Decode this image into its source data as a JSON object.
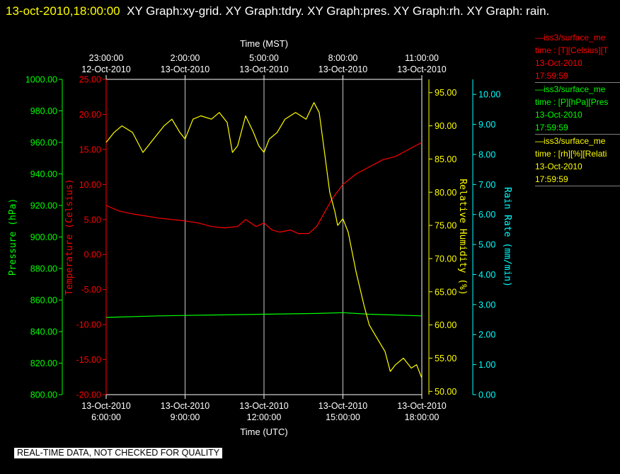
{
  "header": {
    "timestamp": "13-oct-2010,18:00:00",
    "rest": "XY Graph:xy-grid.  XY Graph:tdry.  XY Graph:pres.  XY Graph:rh.  XY Graph: rain."
  },
  "colors": {
    "background": "#000000",
    "temperature": "#ff0000",
    "pressure": "#00ff00",
    "humidity": "#ffff00",
    "rain": "#00ffff",
    "grid": "#ffffff"
  },
  "legend": [
    {
      "lines": [
        "—iss3/surface_me",
        "time : [T][Celsius][T",
        "13-Oct-2010",
        "17:59:59"
      ],
      "color": "#ff0000"
    },
    {
      "lines": [
        "—iss3/surface_me",
        "time : [P][hPa][Pres",
        "13-Oct-2010",
        "17:59:59"
      ],
      "color": "#00ff00"
    },
    {
      "lines": [
        "—iss3/surface_me",
        "time : [rh][%][Relati",
        "13-Oct-2010",
        "17:59:59"
      ],
      "color": "#ffff00"
    }
  ],
  "disclaimer": "REAL-TIME DATA, NOT CHECKED FOR QUALITY",
  "chart_data": {
    "type": "line",
    "x_bottom": {
      "label": "Time (UTC)",
      "range": [
        "13-Oct-2010 06:00:00",
        "13-Oct-2010 18:00:00"
      ],
      "ticks": [
        {
          "date": "13-Oct-2010",
          "time": "6:00:00",
          "hour": 6
        },
        {
          "date": "13-Oct-2010",
          "time": "9:00:00",
          "hour": 9
        },
        {
          "date": "13-Oct-2010",
          "time": "12:00:00",
          "hour": 12
        },
        {
          "date": "13-Oct-2010",
          "time": "15:00:00",
          "hour": 15
        },
        {
          "date": "13-Oct-2010",
          "time": "18:00:00",
          "hour": 18
        }
      ]
    },
    "x_top": {
      "label": "Time (MST)",
      "ticks": [
        {
          "time": "23:00:00",
          "date": "12-Oct-2010",
          "hour": 6
        },
        {
          "time": "2:00:00",
          "date": "13-Oct-2010",
          "hour": 9
        },
        {
          "time": "5:00:00",
          "date": "13-Oct-2010",
          "hour": 12
        },
        {
          "time": "8:00:00",
          "date": "13-Oct-2010",
          "hour": 15
        },
        {
          "time": "11:00:00",
          "date": "13-Oct-2010",
          "hour": 18
        }
      ]
    },
    "grid": true,
    "axes": [
      {
        "id": "pres",
        "label": "Pressure (hPa)",
        "side": "left",
        "range": [
          800,
          1000
        ],
        "ticks": [
          "800.00",
          "820.00",
          "840.00",
          "860.00",
          "880.00",
          "900.00",
          "920.00",
          "940.00",
          "960.00",
          "980.00",
          "1000.00"
        ]
      },
      {
        "id": "tdry",
        "label": "Temperature (Celsius)",
        "side": "left",
        "range": [
          -20,
          25
        ],
        "ticks": [
          "-20.00",
          "-15.00",
          "-10.00",
          "-5.00",
          "0.00",
          "5.00",
          "10.00",
          "15.00",
          "20.00",
          "25.00"
        ]
      },
      {
        "id": "rh",
        "label": "Relative Humidity (%)",
        "side": "right",
        "range": [
          49.5,
          97
        ],
        "ticks": [
          "50.00",
          "55.00",
          "60.00",
          "65.00",
          "70.00",
          "75.00",
          "80.00",
          "85.00",
          "90.00",
          "95.00"
        ]
      },
      {
        "id": "rain",
        "label": "Rain Rate (mm/min)",
        "side": "right",
        "range": [
          0,
          10.5
        ],
        "ticks": [
          "0.00",
          "1.00",
          "2.00",
          "3.00",
          "4.00",
          "5.00",
          "6.00",
          "7.00",
          "8.00",
          "9.00",
          "10.00"
        ]
      }
    ],
    "series": [
      {
        "axis": "tdry",
        "x": [
          6,
          6.5,
          7,
          8,
          8.5,
          9,
          9.5,
          10,
          10.5,
          11,
          11.3,
          11.7,
          12,
          12.3,
          12.6,
          13,
          13.3,
          13.7,
          14,
          14.3,
          14.6,
          15,
          15.5,
          16,
          16.5,
          17,
          17.5,
          18
        ],
        "y": [
          7,
          6.2,
          5.8,
          5.2,
          5,
          4.8,
          4.5,
          4,
          3.8,
          4,
          5,
          4,
          4.5,
          3.5,
          3.2,
          3.5,
          3,
          3,
          4,
          6,
          8,
          10,
          11.5,
          12.5,
          13.5,
          14,
          15,
          16
        ]
      },
      {
        "axis": "pres",
        "x": [
          6,
          8,
          10,
          12,
          14,
          15,
          16,
          17,
          18
        ],
        "y": [
          849,
          850,
          850.5,
          851,
          851.5,
          852,
          851,
          850.5,
          850
        ]
      },
      {
        "axis": "rh",
        "x": [
          6,
          6.3,
          6.6,
          7,
          7.4,
          7.8,
          8.2,
          8.5,
          8.8,
          9,
          9.3,
          9.6,
          10,
          10.3,
          10.6,
          10.8,
          11,
          11.3,
          11.6,
          11.8,
          12,
          12.2,
          12.5,
          12.8,
          13.2,
          13.6,
          13.9,
          14.1,
          14.3,
          14.5,
          14.7,
          14.8,
          15,
          15.2,
          15.5,
          15.8,
          16,
          16.3,
          16.6,
          16.8,
          17,
          17.3,
          17.6,
          17.8,
          18
        ],
        "y": [
          87.5,
          89,
          90,
          89,
          86,
          88,
          90,
          91,
          89,
          88,
          91,
          91.5,
          91,
          92,
          90.5,
          86,
          87,
          91.5,
          89,
          87,
          86,
          88,
          89,
          91,
          92,
          91,
          93.5,
          92,
          86,
          80,
          77,
          75,
          76,
          74,
          68,
          63,
          60,
          58,
          56,
          53,
          54,
          55,
          53.5,
          54,
          52
        ]
      }
    ]
  }
}
